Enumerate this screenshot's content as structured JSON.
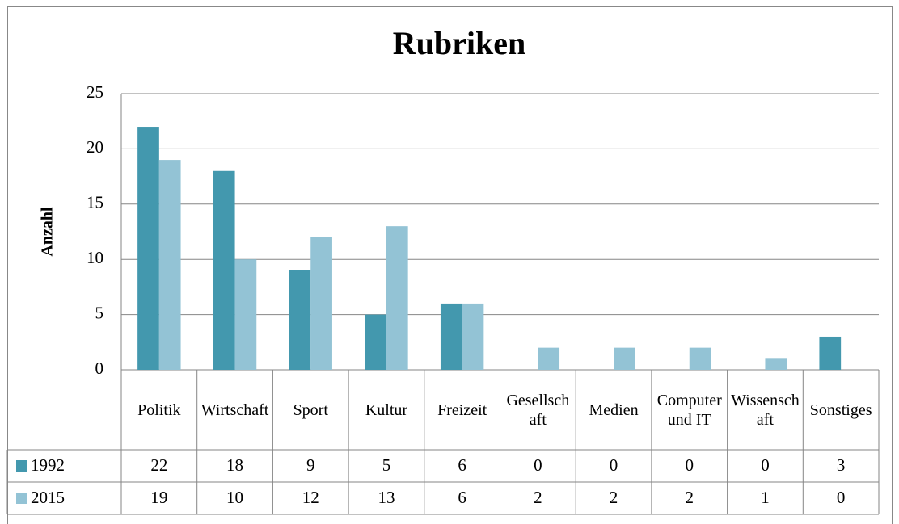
{
  "chart_data": {
    "type": "bar",
    "title": "Rubriken",
    "ylabel": "Anzahl",
    "categories": [
      "Politik",
      "Wirtschaft",
      "Sport",
      "Kultur",
      "Freizeit",
      "Gesellschaft",
      "Medien",
      "Computer und IT",
      "Wissenschaft",
      "Sonstiges"
    ],
    "series": [
      {
        "name": "1992",
        "color": "#4398ae",
        "values": [
          22,
          18,
          9,
          5,
          6,
          0,
          0,
          0,
          0,
          3
        ]
      },
      {
        "name": "2015",
        "color": "#93c3d5",
        "values": [
          19,
          10,
          12,
          13,
          6,
          2,
          2,
          2,
          1,
          0
        ]
      }
    ],
    "ylim": [
      0,
      25
    ],
    "yticks": [
      0,
      5,
      10,
      15,
      20,
      25
    ],
    "grid": true,
    "data_table": true
  }
}
